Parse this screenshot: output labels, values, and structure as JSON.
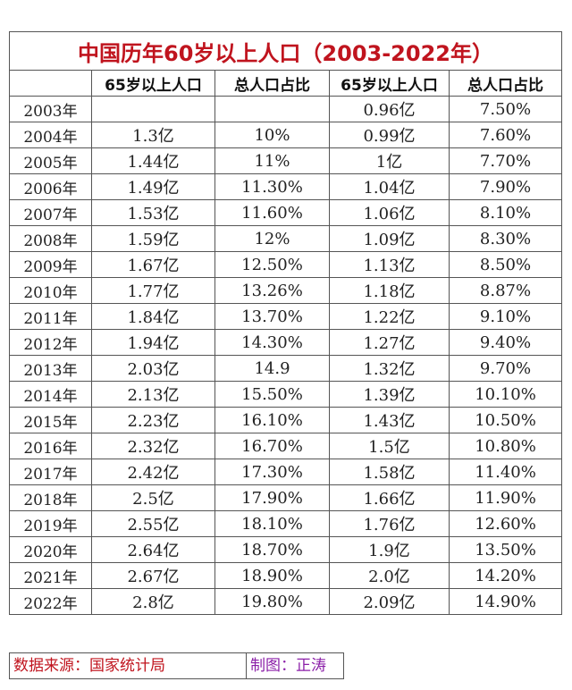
{
  "title": "中国历年60岁以上人口（2003-2022年）",
  "headers": [
    "",
    "65岁以上人口",
    "总人口占比",
    "65岁以上人口",
    "总人口占比"
  ],
  "rows": [
    [
      "2003年",
      "",
      "",
      "0.96亿",
      "7.50%"
    ],
    [
      "2004年",
      "1.3亿",
      "10%",
      "0.99亿",
      "7.60%"
    ],
    [
      "2005年",
      "1.44亿",
      "11%",
      "1亿",
      "7.70%"
    ],
    [
      "2006年",
      "1.49亿",
      "11.30%",
      "1.04亿",
      "7.90%"
    ],
    [
      "2007年",
      "1.53亿",
      "11.60%",
      "1.06亿",
      "8.10%"
    ],
    [
      "2008年",
      "1.59亿",
      "12%",
      "1.09亿",
      "8.30%"
    ],
    [
      "2009年",
      "1.67亿",
      "12.50%",
      "1.13亿",
      "8.50%"
    ],
    [
      "2010年",
      "1.77亿",
      "13.26%",
      "1.18亿",
      "8.87%"
    ],
    [
      "2011年",
      "1.84亿",
      "13.70%",
      "1.22亿",
      "9.10%"
    ],
    [
      "2012年",
      "1.94亿",
      "14.30%",
      "1.27亿",
      "9.40%"
    ],
    [
      "2013年",
      "2.03亿",
      "14.9",
      "1.32亿",
      "9.70%"
    ],
    [
      "2014年",
      "2.13亿",
      "15.50%",
      "1.39亿",
      "10.10%"
    ],
    [
      "2015年",
      "2.23亿",
      "16.10%",
      "1.43亿",
      "10.50%"
    ],
    [
      "2016年",
      "2.32亿",
      "16.70%",
      "1.5亿",
      "10.80%"
    ],
    [
      "2017年",
      "2.42亿",
      "17.30%",
      "1.58亿",
      "11.40%"
    ],
    [
      "2018年",
      "2.5亿",
      "17.90%",
      "1.66亿",
      "11.90%"
    ],
    [
      "2019年",
      "2.55亿",
      "18.10%",
      "1.76亿",
      "12.60%"
    ],
    [
      "2020年",
      "2.64亿",
      "18.70%",
      "1.9亿",
      "13.50%"
    ],
    [
      "2021年",
      "2.67亿",
      "18.90%",
      "2.0亿",
      "14.20%"
    ],
    [
      "2022年",
      "2.8亿",
      "19.80%",
      "2.09亿",
      "14.90%"
    ]
  ],
  "footer": {
    "source": "数据来源：国家统计局",
    "author": "制图：正涛"
  },
  "colors": {
    "title": "#c0141e",
    "source": "#c0141e",
    "author": "#8b1fa8",
    "border": "#555555"
  }
}
